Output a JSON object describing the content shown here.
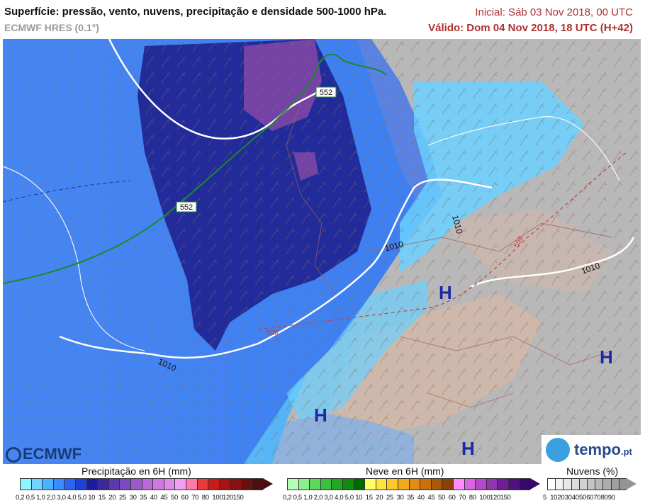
{
  "header": {
    "title": "Superfície: pressão, vento, nuvens, precipitação e densidade 500-1000 hPa.",
    "model": "ECMWF HRES (0.1°)",
    "initial": "Inicial: Sáb 03 Nov 2018, 00 UTC",
    "valid": "Válido: Dom 04 Nov 2018, 18 UTC (H+42)"
  },
  "map": {
    "isobar_labels": [
      "1010",
      "1010",
      "1010",
      "1010"
    ],
    "thickness_labels": [
      "552",
      "552",
      "558",
      "558"
    ],
    "high_marker": "H"
  },
  "logos": {
    "left": "ECMWF",
    "right": "tempo",
    "right_suffix": ".pt"
  },
  "legends": {
    "precip": {
      "title": "Precipitação en 6H (mm)",
      "ticks": [
        "0,2",
        "0,5",
        "1,0",
        "2,0",
        "3,0",
        "4,0",
        "5,0",
        "10",
        "15",
        "20",
        "25",
        "30",
        "35",
        "40",
        "45",
        "50",
        "60",
        "70",
        "80",
        "100",
        "120",
        "150"
      ],
      "colors": [
        "#8cf5ff",
        "#6fd5ff",
        "#4ab4ff",
        "#3a8cff",
        "#2a64f0",
        "#1e40d8",
        "#1c1c9c",
        "#3a2a9c",
        "#5a3aac",
        "#7a4abc",
        "#9a5acc",
        "#ba6ad8",
        "#d078e0",
        "#e08ae8",
        "#f0a0f0",
        "#ff7aa8",
        "#e83a3a",
        "#c81c1c",
        "#a81414",
        "#881010",
        "#681010",
        "#481010"
      ]
    },
    "snow": {
      "title": "Neve en 6H (mm)",
      "ticks": [
        "0,2",
        "0,5",
        "1,0",
        "2,0",
        "3,0",
        "4,0",
        "5,0",
        "10",
        "15",
        "20",
        "25",
        "30",
        "35",
        "40",
        "45",
        "50",
        "60",
        "70",
        "80",
        "100",
        "120",
        "150"
      ],
      "colors": [
        "#b4ffb4",
        "#8cf08c",
        "#5ad85a",
        "#3ac03a",
        "#20a820",
        "#108a10",
        "#006a00",
        "#ffff64",
        "#ffe440",
        "#ffc828",
        "#f0aa1e",
        "#e08c14",
        "#c8700a",
        "#a8580a",
        "#884008",
        "#ff8cff",
        "#d864e0",
        "#b448c8",
        "#9034b0",
        "#701e98",
        "#501080",
        "#380868"
      ]
    },
    "clouds": {
      "title": "Nuvens (%)",
      "ticks": [
        "5",
        "10",
        "20",
        "30",
        "40",
        "50",
        "60",
        "70",
        "80",
        "90"
      ],
      "colors": [
        "#ffffff",
        "#f4f4f4",
        "#e8e8e8",
        "#dcdcdc",
        "#d0d0d0",
        "#c4c4c4",
        "#b8b8b8",
        "#acacac",
        "#a0a0a0",
        "#949494"
      ]
    }
  }
}
